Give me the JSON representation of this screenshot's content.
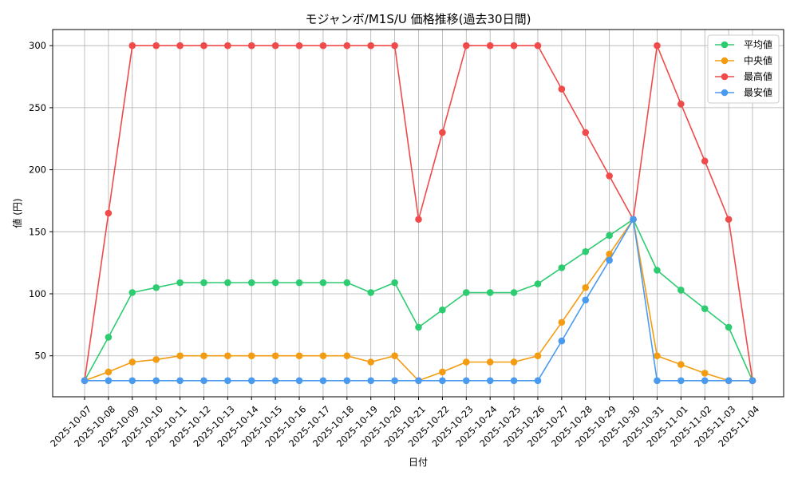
{
  "chart_data": {
    "type": "line",
    "title": "モジャンボ/M1S/U 価格推移(過去30日間)",
    "xlabel": "日付",
    "ylabel": "値 (円)",
    "ylim": [
      17,
      313
    ],
    "yticks": [
      50,
      100,
      150,
      200,
      250,
      300
    ],
    "grid": true,
    "legend_position": "top-right",
    "categories": [
      "2025-10-07",
      "2025-10-08",
      "2025-10-09",
      "2025-10-10",
      "2025-10-11",
      "2025-10-12",
      "2025-10-13",
      "2025-10-14",
      "2025-10-15",
      "2025-10-16",
      "2025-10-17",
      "2025-10-18",
      "2025-10-19",
      "2025-10-20",
      "2025-10-21",
      "2025-10-22",
      "2025-10-23",
      "2025-10-24",
      "2025-10-25",
      "2025-10-26",
      "2025-10-27",
      "2025-10-28",
      "2025-10-29",
      "2025-10-30",
      "2025-10-31",
      "2025-11-01",
      "2025-11-02",
      "2025-11-03",
      "2025-11-04"
    ],
    "series": [
      {
        "name": "平均値",
        "color": "#2ecc71",
        "values": [
          30,
          65,
          101,
          105,
          109,
          109,
          109,
          109,
          109,
          109,
          109,
          109,
          101,
          109,
          73,
          87,
          101,
          101,
          101,
          108,
          121,
          134,
          147,
          160,
          119,
          103,
          88,
          73,
          30
        ]
      },
      {
        "name": "中央値",
        "color": "#f39c12",
        "values": [
          30,
          37,
          45,
          47,
          50,
          50,
          50,
          50,
          50,
          50,
          50,
          50,
          45,
          50,
          30,
          37,
          45,
          45,
          45,
          50,
          77,
          105,
          132,
          160,
          50,
          43,
          36,
          30,
          30
        ]
      },
      {
        "name": "最高値",
        "color": "#f04a4a",
        "values": [
          30,
          165,
          300,
          300,
          300,
          300,
          300,
          300,
          300,
          300,
          300,
          300,
          300,
          300,
          160,
          230,
          300,
          300,
          300,
          300,
          265,
          230,
          195,
          160,
          300,
          253,
          207,
          160,
          30
        ]
      },
      {
        "name": "最安値",
        "color": "#4a9af0",
        "values": [
          30,
          30,
          30,
          30,
          30,
          30,
          30,
          30,
          30,
          30,
          30,
          30,
          30,
          30,
          30,
          30,
          30,
          30,
          30,
          30,
          62,
          95,
          127,
          160,
          30,
          30,
          30,
          30,
          30
        ]
      }
    ]
  }
}
